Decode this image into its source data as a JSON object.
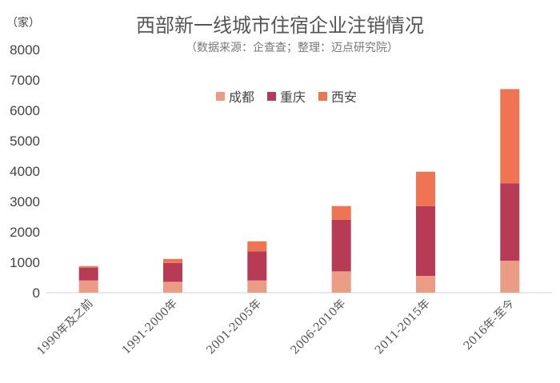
{
  "chart_data": {
    "type": "bar",
    "stacked": true,
    "title": "西部新一线城市住宿企业注销情况",
    "subtitle": "（数据来源：企查查；整理：迈点研究院）",
    "ylabel": "（家）",
    "xlabel": "",
    "ylim": [
      0,
      8000
    ],
    "yticks": [
      0,
      1000,
      2000,
      3000,
      4000,
      5000,
      6000,
      7000,
      8000
    ],
    "grid": false,
    "legend_position": "top-center",
    "categories": [
      "1990年及之前",
      "1991-2000年",
      "2001-2005年",
      "2006-2010年",
      "2011-2015年",
      "2016年-至今"
    ],
    "series": [
      {
        "name": "成都",
        "color": "#EB9C85",
        "values": [
          400,
          360,
          400,
          700,
          550,
          1050
        ]
      },
      {
        "name": "重庆",
        "color": "#B83B55",
        "values": [
          420,
          620,
          960,
          1700,
          2300,
          2550
        ]
      },
      {
        "name": "西安",
        "color": "#EE7452",
        "values": [
          50,
          130,
          330,
          450,
          1130,
          3100
        ]
      }
    ]
  }
}
